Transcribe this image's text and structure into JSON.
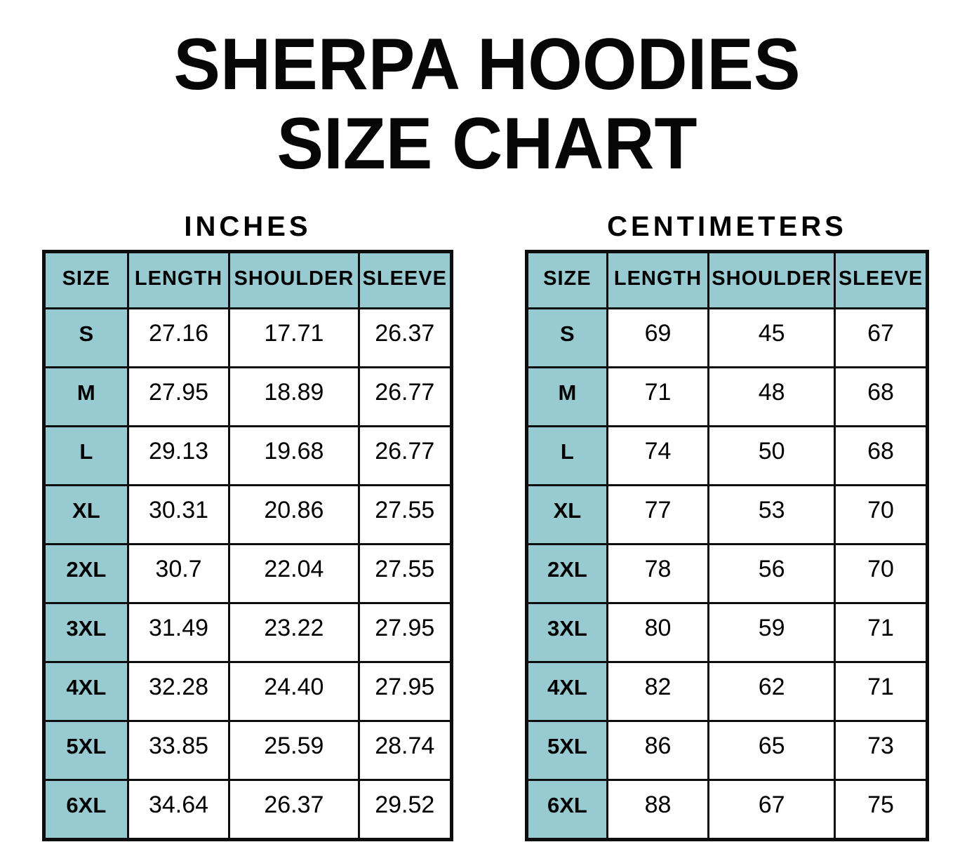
{
  "title": {
    "line1": "SHERPA HOODIES",
    "line2": "SIZE CHART"
  },
  "colors": {
    "accent_teal": "#97CBD1",
    "border": "#0d0d0d",
    "background": "#ffffff",
    "text": "#000000"
  },
  "tables": [
    {
      "heading": "INCHES",
      "columns": [
        "SIZE",
        "LENGTH",
        "SHOULDER",
        "SLEEVE"
      ],
      "rows": [
        {
          "size": "S",
          "values": [
            "27.16",
            "17.71",
            "26.37"
          ]
        },
        {
          "size": "M",
          "values": [
            "27.95",
            "18.89",
            "26.77"
          ]
        },
        {
          "size": "L",
          "values": [
            "29.13",
            "19.68",
            "26.77"
          ]
        },
        {
          "size": "XL",
          "values": [
            "30.31",
            "20.86",
            "27.55"
          ]
        },
        {
          "size": "2XL",
          "values": [
            "30.7",
            "22.04",
            "27.55"
          ]
        },
        {
          "size": "3XL",
          "values": [
            "31.49",
            "23.22",
            "27.95"
          ]
        },
        {
          "size": "4XL",
          "values": [
            "32.28",
            "24.40",
            "27.95"
          ]
        },
        {
          "size": "5XL",
          "values": [
            "33.85",
            "25.59",
            "28.74"
          ]
        },
        {
          "size": "6XL",
          "values": [
            "34.64",
            "26.37",
            "29.52"
          ]
        }
      ]
    },
    {
      "heading": "CENTIMETERS",
      "columns": [
        "SIZE",
        "LENGTH",
        "SHOULDER",
        "SLEEVE"
      ],
      "rows": [
        {
          "size": "S",
          "values": [
            "69",
            "45",
            "67"
          ]
        },
        {
          "size": "M",
          "values": [
            "71",
            "48",
            "68"
          ]
        },
        {
          "size": "L",
          "values": [
            "74",
            "50",
            "68"
          ]
        },
        {
          "size": "XL",
          "values": [
            "77",
            "53",
            "70"
          ]
        },
        {
          "size": "2XL",
          "values": [
            "78",
            "56",
            "70"
          ]
        },
        {
          "size": "3XL",
          "values": [
            "80",
            "59",
            "71"
          ]
        },
        {
          "size": "4XL",
          "values": [
            "82",
            "62",
            "71"
          ]
        },
        {
          "size": "5XL",
          "values": [
            "86",
            "65",
            "73"
          ]
        },
        {
          "size": "6XL",
          "values": [
            "88",
            "67",
            "75"
          ]
        }
      ]
    }
  ],
  "chart_data": [
    {
      "type": "table",
      "title": "SHERPA HOODIES SIZE CHART — INCHES",
      "columns": [
        "SIZE",
        "LENGTH",
        "SHOULDER",
        "SLEEVE"
      ],
      "rows": [
        [
          "S",
          27.16,
          17.71,
          26.37
        ],
        [
          "M",
          27.95,
          18.89,
          26.77
        ],
        [
          "L",
          29.13,
          19.68,
          26.77
        ],
        [
          "XL",
          30.31,
          20.86,
          27.55
        ],
        [
          "2XL",
          30.7,
          22.04,
          27.55
        ],
        [
          "3XL",
          31.49,
          23.22,
          27.95
        ],
        [
          "4XL",
          32.28,
          24.4,
          27.95
        ],
        [
          "5XL",
          33.85,
          25.59,
          28.74
        ],
        [
          "6XL",
          34.64,
          26.37,
          29.52
        ]
      ]
    },
    {
      "type": "table",
      "title": "SHERPA HOODIES SIZE CHART — CENTIMETERS",
      "columns": [
        "SIZE",
        "LENGTH",
        "SHOULDER",
        "SLEEVE"
      ],
      "rows": [
        [
          "S",
          69,
          45,
          67
        ],
        [
          "M",
          71,
          48,
          68
        ],
        [
          "L",
          74,
          50,
          68
        ],
        [
          "XL",
          77,
          53,
          70
        ],
        [
          "2XL",
          78,
          56,
          70
        ],
        [
          "3XL",
          80,
          59,
          71
        ],
        [
          "4XL",
          82,
          62,
          71
        ],
        [
          "5XL",
          86,
          65,
          73
        ],
        [
          "6XL",
          88,
          67,
          75
        ]
      ]
    }
  ]
}
